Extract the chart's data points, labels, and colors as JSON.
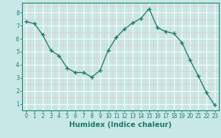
{
  "x": [
    0,
    1,
    2,
    3,
    4,
    5,
    6,
    7,
    8,
    9,
    10,
    11,
    12,
    13,
    14,
    15,
    16,
    17,
    18,
    19,
    20,
    21,
    22,
    23
  ],
  "y": [
    7.3,
    7.15,
    6.3,
    5.1,
    4.7,
    3.75,
    3.4,
    3.4,
    3.05,
    3.55,
    5.1,
    6.1,
    6.75,
    7.2,
    7.55,
    8.3,
    6.85,
    6.55,
    6.4,
    5.7,
    4.35,
    3.15,
    1.85,
    0.9
  ],
  "xlabel": "Humidex (Indice chaleur)",
  "line_color": "#1a7a6e",
  "marker": "+",
  "bg_color": "#c8e8e5",
  "grid_major_color": "#ffffff",
  "grid_minor_color": "#f0c8c8",
  "xlim": [
    -0.5,
    23.5
  ],
  "ylim": [
    0.5,
    8.75
  ],
  "yticks": [
    1,
    2,
    3,
    4,
    5,
    6,
    7,
    8
  ],
  "xticks": [
    0,
    1,
    2,
    3,
    4,
    5,
    6,
    7,
    8,
    9,
    10,
    11,
    12,
    13,
    14,
    15,
    16,
    17,
    18,
    19,
    20,
    21,
    22,
    23
  ],
  "tick_fontsize": 5.5,
  "xlabel_fontsize": 7.5,
  "linewidth": 1.0,
  "markersize": 4.0,
  "markeredgewidth": 1.0
}
